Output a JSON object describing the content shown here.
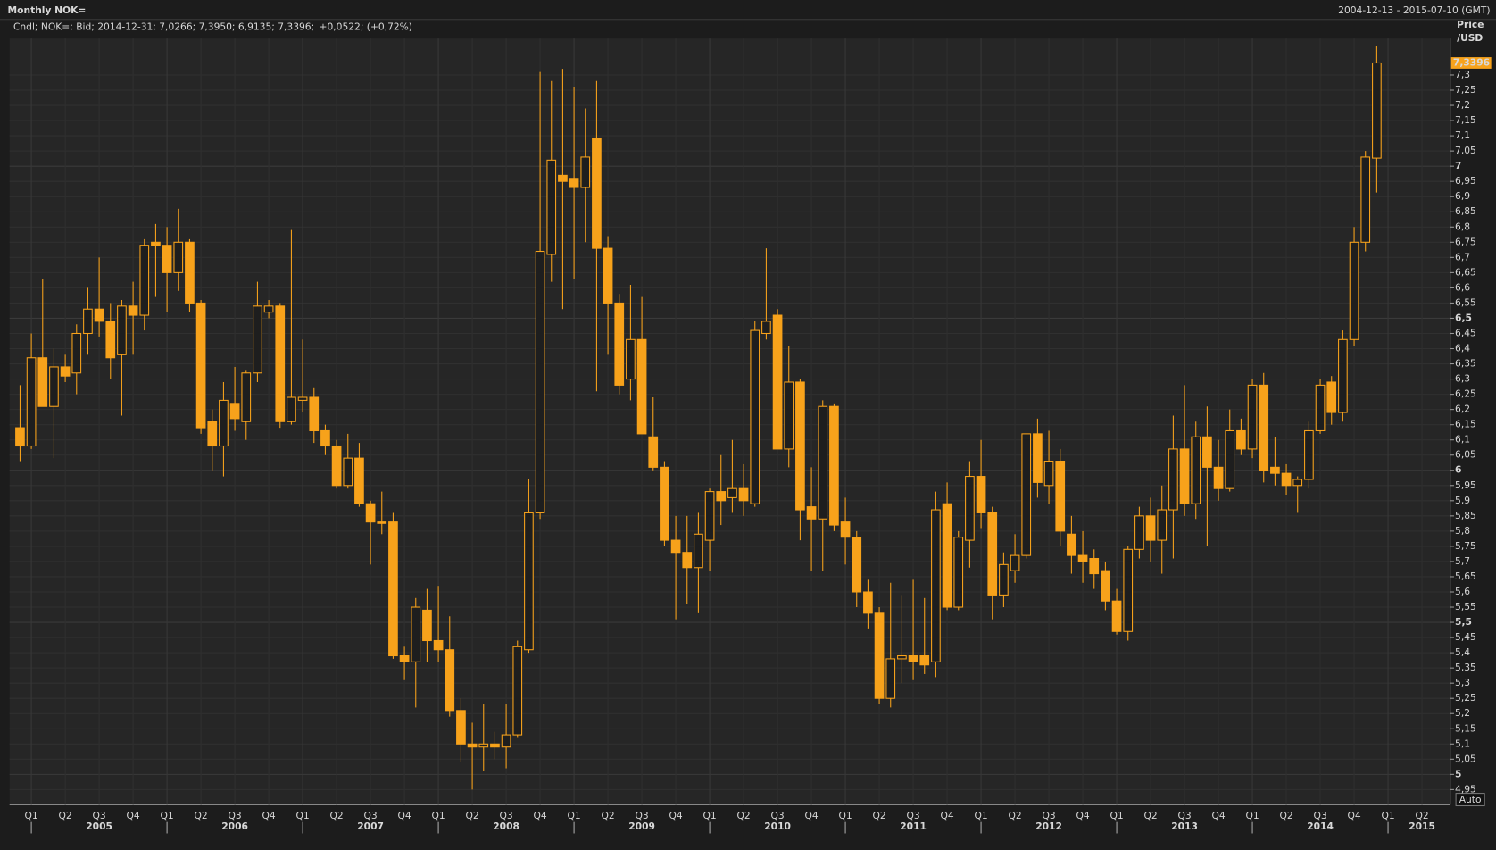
{
  "chart_data": {
    "type": "candlestick",
    "title": "Monthly NOK=",
    "date_range": "2004-12-13 - 2015-07-10 (GMT)",
    "legend_text": "Cndl; NOK=; Bid; 2014-12-31; 7,0266; 7,3950; 6,9135; 7,3396;",
    "legend_change": "+0,0522; (+0,72%)",
    "y_label": [
      "Price",
      "/USD"
    ],
    "last_value_label": "7,3396",
    "auto_button": "Auto",
    "color": "#f7a21b",
    "change_color": "#3fd3d3",
    "grid": true,
    "ylim": [
      4.9,
      7.42
    ],
    "yticks": [
      {
        "value": 4.95,
        "label": "4,95"
      },
      5,
      {
        "value": 5.05,
        "label": "5,05"
      },
      {
        "value": 5.1,
        "label": "5,1"
      },
      {
        "value": 5.15,
        "label": "5,15"
      },
      {
        "value": 5.2,
        "label": "5,2"
      },
      {
        "value": 5.25,
        "label": "5,25"
      },
      {
        "value": 5.3,
        "label": "5,3"
      },
      {
        "value": 5.35,
        "label": "5,35"
      },
      {
        "value": 5.4,
        "label": "5,4"
      },
      {
        "value": 5.45,
        "label": "5,45"
      },
      {
        "value": 5.5,
        "label": "5,5"
      },
      {
        "value": 5.55,
        "label": "5,55"
      },
      {
        "value": 5.6,
        "label": "5,6"
      },
      {
        "value": 5.65,
        "label": "5,65"
      },
      {
        "value": 5.7,
        "label": "5,7"
      },
      {
        "value": 5.75,
        "label": "5,75"
      },
      {
        "value": 5.8,
        "label": "5,8"
      },
      {
        "value": 5.85,
        "label": "5,85"
      },
      {
        "value": 5.9,
        "label": "5,9"
      },
      {
        "value": 5.95,
        "label": "5,95"
      },
      6,
      {
        "value": 6.05,
        "label": "6,05"
      },
      {
        "value": 6.1,
        "label": "6,1"
      },
      {
        "value": 6.15,
        "label": "6,15"
      },
      {
        "value": 6.2,
        "label": "6,2"
      },
      {
        "value": 6.25,
        "label": "6,25"
      },
      {
        "value": 6.3,
        "label": "6,3"
      },
      {
        "value": 6.35,
        "label": "6,35"
      },
      {
        "value": 6.4,
        "label": "6,4"
      },
      {
        "value": 6.45,
        "label": "6,45"
      },
      {
        "value": 6.5,
        "label": "6,5"
      },
      {
        "value": 6.55,
        "label": "6,55"
      },
      {
        "value": 6.6,
        "label": "6,6"
      },
      {
        "value": 6.65,
        "label": "6,65"
      },
      {
        "value": 6.7,
        "label": "6,7"
      },
      {
        "value": 6.75,
        "label": "6,75"
      },
      {
        "value": 6.8,
        "label": "6,8"
      },
      {
        "value": 6.85,
        "label": "6,85"
      },
      {
        "value": 6.9,
        "label": "6,9"
      },
      {
        "value": 6.95,
        "label": "6,95"
      },
      7,
      {
        "value": 7.05,
        "label": "7,05"
      },
      {
        "value": 7.1,
        "label": "7,1"
      },
      {
        "value": 7.15,
        "label": "7,15"
      },
      {
        "value": 7.2,
        "label": "7,2"
      },
      {
        "value": 7.25,
        "label": "7,25"
      },
      {
        "value": 7.3,
        "label": "7,3"
      }
    ],
    "x_quarter_labels": [
      "Q1",
      "Q2",
      "Q3",
      "Q4",
      "Q1",
      "Q2",
      "Q3",
      "Q4",
      "Q1",
      "Q2",
      "Q3",
      "Q4",
      "Q1",
      "Q2",
      "Q3",
      "Q4",
      "Q1",
      "Q2",
      "Q3",
      "Q4",
      "Q1",
      "Q2",
      "Q3",
      "Q4",
      "Q1",
      "Q2",
      "Q3",
      "Q4",
      "Q1",
      "Q2",
      "Q3",
      "Q4",
      "Q1",
      "Q2",
      "Q3",
      "Q4",
      "Q1",
      "Q2",
      "Q3",
      "Q4",
      "Q1",
      "Q2"
    ],
    "x_year_labels": [
      2005,
      2006,
      2007,
      2008,
      2009,
      2010,
      2011,
      2012,
      2013,
      2014,
      2015
    ],
    "open": [
      6.14,
      6.08,
      6.37,
      6.21,
      6.34,
      6.32,
      6.45,
      6.53,
      6.49,
      6.38,
      6.54,
      6.51,
      6.75,
      6.74,
      6.65,
      6.75,
      6.55,
      6.16,
      6.08,
      6.22,
      6.16,
      6.32,
      6.52,
      6.54,
      6.16,
      6.23,
      6.24,
      6.13,
      6.08,
      5.95,
      6.04,
      5.89,
      5.83,
      5.83,
      5.39,
      5.37,
      5.54,
      5.44,
      5.41,
      5.21,
      5.1,
      5.09,
      5.1,
      5.09,
      5.13,
      5.41,
      5.86,
      6.71,
      6.97,
      6.96,
      6.93,
      7.09,
      6.73,
      6.55,
      6.3,
      6.43,
      6.11,
      6.01,
      5.77,
      5.73,
      5.68,
      5.77,
      5.93,
      5.91,
      5.94,
      5.89,
      6.45,
      6.51,
      6.07,
      6.29,
      5.88,
      5.84,
      6.21,
      5.83,
      5.78,
      5.6,
      5.53,
      5.25,
      5.38,
      5.39,
      5.39,
      5.37,
      5.89,
      5.55,
      5.77,
      5.98,
      5.86,
      5.59,
      5.67,
      5.72,
      6.12,
      5.95,
      6.03,
      5.79,
      5.72,
      5.71,
      5.67,
      5.57,
      5.47,
      5.74,
      5.85,
      5.77,
      5.87,
      6.07,
      5.89,
      6.11,
      6.01,
      5.94,
      6.13,
      6.07,
      6.28,
      6.01,
      5.99,
      5.95,
      5.97,
      6.13,
      6.29,
      6.19,
      6.43,
      6.75,
      7.0266
    ],
    "high": [
      6.28,
      6.45,
      6.63,
      6.4,
      6.38,
      6.48,
      6.6,
      6.7,
      6.55,
      6.56,
      6.62,
      6.76,
      6.81,
      6.8,
      6.86,
      6.76,
      6.56,
      6.2,
      6.29,
      6.34,
      6.33,
      6.62,
      6.56,
      6.55,
      6.79,
      6.43,
      6.27,
      6.15,
      6.1,
      6.12,
      6.09,
      5.9,
      5.93,
      5.86,
      5.42,
      5.58,
      5.61,
      5.62,
      5.52,
      5.25,
      5.17,
      5.23,
      5.14,
      5.23,
      5.44,
      5.97,
      7.31,
      7.28,
      7.32,
      7.26,
      7.19,
      7.28,
      6.77,
      6.58,
      6.61,
      6.57,
      6.24,
      6.03,
      5.85,
      5.85,
      5.86,
      5.94,
      6.05,
      6.1,
      6.02,
      6.49,
      6.73,
      6.53,
      6.41,
      6.3,
      6.01,
      6.23,
      6.22,
      5.91,
      5.8,
      5.64,
      5.55,
      5.63,
      5.59,
      5.64,
      5.58,
      5.93,
      5.96,
      5.8,
      6.03,
      6.1,
      5.88,
      5.73,
      5.79,
      6.12,
      6.17,
      6.13,
      6.07,
      5.85,
      5.8,
      5.74,
      5.7,
      5.61,
      5.75,
      5.88,
      5.91,
      5.95,
      6.18,
      6.28,
      6.16,
      6.21,
      6.1,
      6.2,
      6.17,
      6.3,
      6.32,
      6.11,
      6.02,
      5.98,
      6.16,
      6.3,
      6.31,
      6.46,
      6.8,
      7.05,
      7.395
    ],
    "low": [
      6.03,
      6.07,
      6.21,
      6.04,
      6.29,
      6.25,
      6.38,
      6.44,
      6.3,
      6.18,
      6.38,
      6.46,
      6.57,
      6.52,
      6.59,
      6.52,
      6.12,
      6.0,
      5.98,
      6.13,
      6.1,
      6.29,
      6.5,
      6.14,
      6.15,
      6.19,
      6.09,
      6.05,
      5.94,
      5.94,
      5.88,
      5.69,
      5.79,
      5.38,
      5.31,
      5.22,
      5.37,
      5.37,
      5.19,
      5.04,
      4.95,
      5.01,
      5.05,
      5.02,
      5.12,
      5.4,
      5.84,
      6.62,
      6.53,
      6.63,
      6.75,
      6.26,
      6.38,
      6.25,
      6.23,
      6.12,
      6.0,
      5.75,
      5.51,
      5.56,
      5.53,
      5.67,
      5.82,
      5.86,
      5.85,
      5.88,
      6.43,
      6.07,
      6.01,
      5.77,
      5.67,
      5.67,
      5.8,
      5.69,
      5.55,
      5.48,
      5.23,
      5.22,
      5.3,
      5.31,
      5.33,
      5.32,
      5.54,
      5.54,
      5.68,
      5.81,
      5.51,
      5.55,
      5.63,
      5.71,
      5.91,
      5.89,
      5.75,
      5.66,
      5.63,
      5.61,
      5.54,
      5.46,
      5.44,
      5.71,
      5.7,
      5.66,
      5.71,
      5.85,
      5.84,
      5.75,
      5.9,
      5.93,
      6.05,
      6.04,
      5.96,
      5.95,
      5.92,
      5.86,
      5.94,
      6.12,
      6.15,
      6.16,
      6.41,
      6.72,
      6.9135
    ],
    "close": [
      6.08,
      6.37,
      6.21,
      6.34,
      6.31,
      6.45,
      6.53,
      6.49,
      6.37,
      6.54,
      6.51,
      6.74,
      6.74,
      6.65,
      6.75,
      6.55,
      6.14,
      6.08,
      6.23,
      6.17,
      6.32,
      6.54,
      6.54,
      6.16,
      6.24,
      6.24,
      6.13,
      6.08,
      5.95,
      6.04,
      5.89,
      5.83,
      5.83,
      5.39,
      5.37,
      5.55,
      5.44,
      5.41,
      5.21,
      5.1,
      5.09,
      5.1,
      5.09,
      5.13,
      5.42,
      5.86,
      6.72,
      7.02,
      6.95,
      6.93,
      7.03,
      6.73,
      6.55,
      6.28,
      6.43,
      6.12,
      6.01,
      5.77,
      5.73,
      5.68,
      5.79,
      5.93,
      5.9,
      5.94,
      5.9,
      6.46,
      6.49,
      6.07,
      6.29,
      5.87,
      5.84,
      6.21,
      5.82,
      5.78,
      5.6,
      5.53,
      5.25,
      5.38,
      5.39,
      5.37,
      5.36,
      5.87,
      5.55,
      5.78,
      5.98,
      5.86,
      5.59,
      5.69,
      5.72,
      6.12,
      5.96,
      6.03,
      5.8,
      5.72,
      5.7,
      5.66,
      5.57,
      5.47,
      5.74,
      5.85,
      5.77,
      5.87,
      6.07,
      5.89,
      6.11,
      6.01,
      5.94,
      6.13,
      6.07,
      6.28,
      6.0,
      5.99,
      5.95,
      5.97,
      6.13,
      6.28,
      6.19,
      6.43,
      6.75,
      7.03,
      7.3396
    ]
  }
}
